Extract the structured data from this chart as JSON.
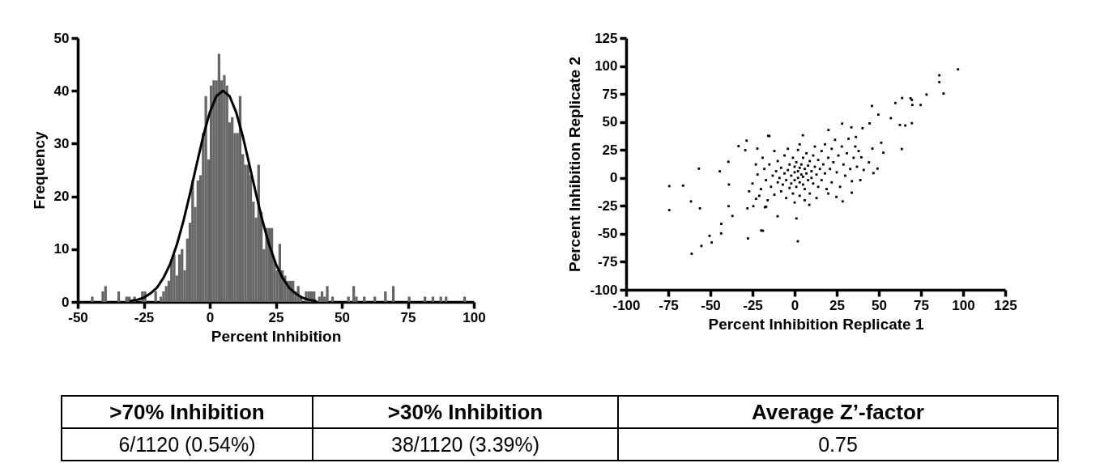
{
  "chart_data": [
    {
      "type": "histogram",
      "xlabel": "Percent Inhibition",
      "ylabel": "Frequency",
      "color": "#666666",
      "bins": [
        -50,
        -49,
        -48,
        -47,
        -46,
        -45,
        -44,
        -43,
        -42,
        -41,
        -40,
        -39,
        -38,
        -37,
        -36,
        -35,
        -34,
        -33,
        -32,
        -31,
        -30,
        -29,
        -28,
        -27,
        -26,
        -25,
        -24,
        -23,
        -22,
        -21,
        -20,
        -19,
        -18,
        -17,
        -16,
        -15,
        -14,
        -13,
        -12,
        -11,
        -10,
        -9,
        -8,
        -7,
        -6,
        -5,
        -4,
        -3,
        -2,
        -1,
        0,
        1,
        2,
        3,
        4,
        5,
        6,
        7,
        8,
        9,
        10,
        11,
        12,
        13,
        14,
        15,
        16,
        17,
        18,
        19,
        20,
        21,
        22,
        23,
        24,
        25,
        26,
        27,
        28,
        29,
        30,
        31,
        32,
        33,
        34,
        35,
        36,
        37,
        38,
        39,
        40,
        41,
        42,
        43,
        44,
        45,
        46,
        47,
        48,
        49,
        50,
        51,
        52,
        53,
        54,
        55,
        56,
        57,
        58,
        59,
        60,
        61,
        62,
        63,
        64,
        65,
        66,
        67,
        68,
        69,
        70,
        71,
        72,
        73,
        74,
        75,
        76,
        77,
        78,
        79,
        80,
        81,
        82,
        83,
        84,
        85,
        86,
        87,
        88,
        89,
        90,
        91,
        92,
        93,
        94,
        95,
        96,
        97,
        98,
        99,
        100
      ],
      "values": [
        0,
        0,
        0,
        0,
        0,
        1,
        0,
        0,
        0,
        2,
        3,
        0,
        0,
        0,
        0,
        2,
        0,
        0,
        1,
        1,
        0,
        1,
        0,
        0,
        2,
        2,
        0,
        0,
        0,
        2,
        0,
        1,
        2,
        3,
        4,
        8,
        9,
        5,
        9,
        10,
        6,
        12,
        15,
        23,
        18,
        23,
        24,
        32,
        39,
        27,
        41,
        42,
        42,
        47,
        42,
        43,
        41,
        34,
        35,
        32,
        32,
        39,
        28,
        26,
        26,
        24,
        19,
        16,
        26,
        17,
        10,
        14,
        14,
        14,
        8,
        6,
        11,
        6,
        5,
        4,
        4,
        4,
        2,
        3,
        1,
        0,
        2,
        2,
        2,
        2,
        0,
        1,
        2,
        1,
        3,
        0,
        1,
        0,
        0,
        0,
        0,
        0,
        1,
        0,
        3,
        1,
        0,
        0,
        1,
        0,
        0,
        0,
        1,
        0,
        0,
        0,
        2,
        0,
        0,
        3,
        0,
        0,
        0,
        0,
        0,
        1,
        0,
        0,
        0,
        0,
        0,
        1,
        0,
        0,
        1,
        0,
        0,
        1,
        0,
        1,
        0,
        0,
        0,
        0,
        0,
        0,
        1,
        0,
        0,
        0
      ],
      "series": [
        {
          "type": "line",
          "color": "#000000",
          "x": [
            -30,
            -27.5,
            -25,
            -22.5,
            -20,
            -17.5,
            -15,
            -12.5,
            -10,
            -7.5,
            -5,
            -2.5,
            0,
            2.5,
            5,
            7.5,
            10,
            12.5,
            15,
            17.5,
            20,
            22.5,
            25,
            27.5,
            30,
            32.5,
            35,
            37.5,
            40
          ],
          "values": [
            0.2,
            0.4,
            0.8,
            1.6,
            2.7,
            4.6,
            7.2,
            10.8,
            15.3,
            20.5,
            26.0,
            31.4,
            35.9,
            39.0,
            40,
            39.0,
            35.9,
            31.4,
            26.0,
            20.5,
            15.3,
            10.8,
            7.2,
            4.6,
            2.7,
            1.6,
            0.8,
            0.4,
            0.2
          ]
        }
      ],
      "xlim": [
        -50,
        100
      ],
      "xticks": [
        -50,
        -25,
        0,
        25,
        50,
        75,
        100
      ],
      "ylim": [
        0,
        50
      ],
      "yticks": [
        0,
        10,
        20,
        30,
        40,
        50
      ]
    },
    {
      "type": "scatter",
      "xlabel": "Percent  Inhibition Replicate 1",
      "ylabel": "Percent Inhibition Replicate 2",
      "marker": "square",
      "series": [
        {
          "color": "#000000",
          "x": [
            -74.4,
            -74.4,
            -66.2,
            -61.5,
            -56.8,
            -56.2,
            -61.1,
            -55.3,
            -50.5,
            -49.2,
            -43.5,
            -43.6,
            -36.9,
            -39.2,
            -39,
            -39.3,
            -44.4,
            -33.3,
            -28.5,
            -29.3,
            -28,
            -27.7,
            -18.8,
            -22.1,
            -15,
            -16.9,
            -22.9,
            -24.5,
            85.9,
            85.9,
            88.4,
            78.3,
            74.8,
            69.9,
            68.8,
            69.6,
            63.8,
            59.8,
            57.1,
            62.5,
            65.7,
            69.6,
            63.6,
            49.7,
            45.9,
            44.5,
            51.4,
            52.7,
            49.2,
            46.8,
            46.2,
            44.1,
            40.3,
            36.4,
            33.7,
            28.2,
            20.1,
            4.9,
            -15.7,
            1.9,
            1.1,
            -10.1,
            -19.8,
            -17.6,
            8.7,
            28.5,
            33.9,
            24.8,
            41,
            39.6,
            97,
            -25,
            -22,
            -20,
            -18,
            -17,
            -15,
            -14,
            -13,
            -12,
            -11,
            -10,
            -10,
            -9,
            -8,
            -8,
            -7,
            -6,
            -6,
            -5,
            -5,
            -4,
            -3,
            -3,
            -2,
            -2,
            -1,
            -1,
            0,
            0,
            0,
            1,
            1,
            2,
            2,
            2,
            3,
            3,
            3,
            4,
            4,
            5,
            5,
            5,
            6,
            6,
            7,
            7,
            8,
            8,
            9,
            9,
            10,
            10,
            11,
            11,
            12,
            12,
            13,
            14,
            14,
            15,
            16,
            16,
            17,
            18,
            18,
            19,
            20,
            21,
            22,
            22,
            23,
            24,
            25,
            26,
            27,
            28,
            29,
            30,
            31,
            32,
            33,
            34,
            35,
            36,
            37,
            38,
            39,
            -16,
            -19,
            -23,
            -21,
            -27,
            0,
            6,
            13,
            20,
            3,
            -4,
            -12
          ],
          "values": [
            -7.3,
            -28.8,
            -6.9,
            -21,
            8.3,
            -27.2,
            -67.8,
            -60.8,
            -51.8,
            -57.7,
            -41.1,
            -49.6,
            -34,
            -25.3,
            -5.9,
            14.4,
            5.9,
            28.4,
            33.3,
            24.8,
            -27.2,
            -54.1,
            -47.3,
            26.2,
            37.4,
            -25.8,
            -18.7,
            -25.3,
            91.7,
            85.6,
            75.4,
            74.5,
            65.2,
            65.2,
            71.2,
            69.7,
            71.4,
            66.9,
            53.4,
            47.3,
            46.8,
            48.9,
            25.8,
            56.5,
            64.3,
            48.7,
            31.4,
            22.5,
            8.3,
            4.3,
            26.2,
            13.9,
            44.4,
            36.6,
            45.2,
            48.5,
            42.8,
            38.1,
            37.6,
            -56.7,
            -36.2,
            -34.3,
            -47,
            -26.2,
            -24.1,
            -21,
            -13.2,
            -17,
            7.1,
            18.4,
            97,
            -5,
            3,
            -10,
            8,
            -2,
            12,
            -8,
            2,
            -15,
            6,
            -4,
            15,
            0,
            -12,
            9,
            -6,
            4,
            20,
            -2,
            -18,
            7,
            -9,
            12,
            2,
            -5,
            18,
            -14,
            5,
            -2,
            10,
            -8,
            14,
            0,
            6,
            25,
            -4,
            9,
            -16,
            3,
            12,
            -6,
            18,
            1,
            8,
            -10,
            4,
            22,
            -2,
            11,
            15,
            -14,
            6,
            0,
            20,
            -5,
            10,
            28,
            3,
            16,
            -8,
            8,
            24,
            -2,
            12,
            4,
            30,
            -10,
            18,
            8,
            26,
            -4,
            14,
            34,
            5,
            20,
            -8,
            28,
            12,
            2,
            22,
            35,
            8,
            -3,
            18,
            28,
            10,
            24,
            -2,
            -20,
            18,
            12,
            -16,
            -12,
            -22,
            -20,
            -18,
            -14,
            30,
            26,
            24
          ]
        }
      ],
      "xlim": [
        -100,
        125
      ],
      "xticks": [
        -100,
        -75,
        -50,
        -25,
        0,
        25,
        50,
        75,
        100,
        125
      ],
      "ylim": [
        -100,
        125
      ],
      "yticks": [
        -100,
        -75,
        -50,
        -25,
        0,
        25,
        50,
        75,
        100,
        125
      ]
    },
    {
      "type": "other",
      "categories": [
        ">70% Inhibition",
        ">30% Inhibition",
        "Average Z’-factor"
      ],
      "annotations": [
        "6/1120 (0.54%)",
        "38/1120 (3.39%)",
        "0.75"
      ]
    }
  ]
}
